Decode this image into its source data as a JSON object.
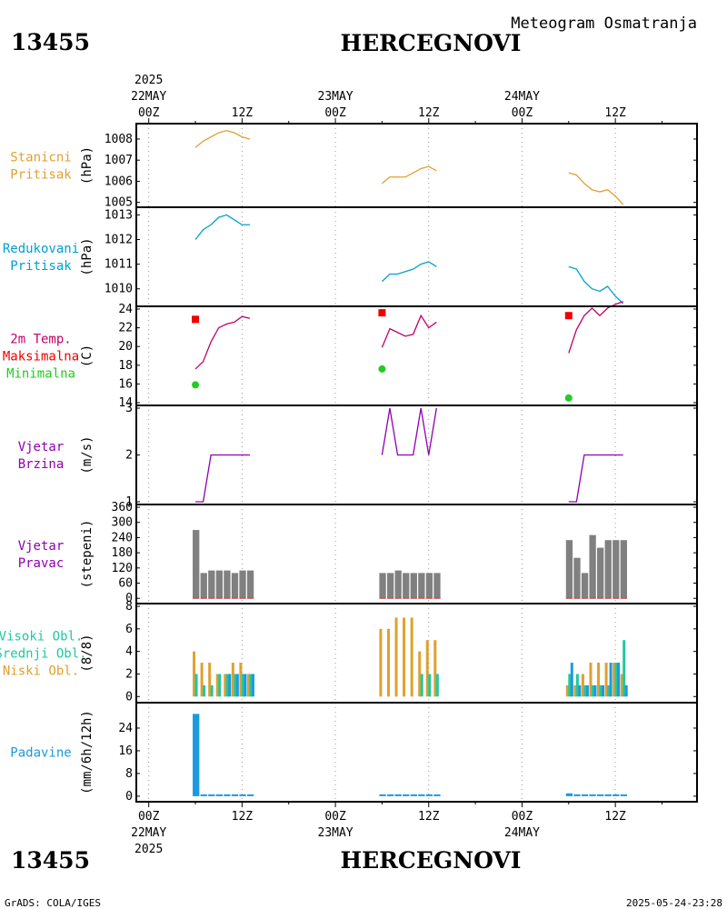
{
  "header": {
    "station_id": "13455",
    "station_name": "HERCEGNOVI",
    "subtitle": "Meteogram Osmatranja"
  },
  "footer": {
    "station_id": "13455",
    "station_name": "HERCEGNOVI",
    "credit": "GrADS: COLA/IGES",
    "timestamp": "2025-05-24-23:28"
  },
  "time_axis": {
    "year": "2025",
    "top_labels": [
      {
        "hour": 0,
        "time": "00Z",
        "date": "22MAY",
        "year": "2025"
      },
      {
        "hour": 12,
        "time": "12Z",
        "date": "",
        "year": ""
      },
      {
        "hour": 24,
        "time": "00Z",
        "date": "23MAY",
        "year": ""
      },
      {
        "hour": 36,
        "time": "12Z",
        "date": "",
        "year": ""
      },
      {
        "hour": 48,
        "time": "00Z",
        "date": "24MAY",
        "year": ""
      },
      {
        "hour": 60,
        "time": "12Z",
        "date": "",
        "year": ""
      }
    ],
    "bottom_labels": [
      {
        "hour": 0,
        "time": "00Z",
        "date": "22MAY",
        "year": "2025"
      },
      {
        "hour": 12,
        "time": "12Z",
        "date": "",
        "year": ""
      },
      {
        "hour": 24,
        "time": "00Z",
        "date": "23MAY",
        "year": ""
      },
      {
        "hour": 36,
        "time": "12Z",
        "date": "",
        "year": ""
      },
      {
        "hour": 48,
        "time": "00Z",
        "date": "24MAY",
        "year": ""
      },
      {
        "hour": 60,
        "time": "12Z",
        "date": "",
        "year": ""
      }
    ],
    "range_hours": [
      -1.6,
      70.5
    ]
  },
  "colors": {
    "station_pressure": "#e0a030",
    "reduced_pressure": "#00a0d0",
    "temperature": "#c0006a",
    "maximum": "#ee0000",
    "minimum": "#22cc22",
    "wind": "#9000b0",
    "direction_bar": "#808080",
    "direction_base": "#cc3333",
    "cloud_low": "#e0a030",
    "cloud_mid": "#20c8a0",
    "cloud_high": "#1a9ae0",
    "precip": "#1a9ae0"
  },
  "chart_data": [
    {
      "type": "line",
      "id": "station_pressure",
      "labels": [
        "Stanicni",
        "Pritisak"
      ],
      "ylabel": "(hPa)",
      "ylim": [
        1004.9,
        1008.6
      ],
      "yticks": [
        1005,
        1006,
        1007,
        1008
      ],
      "series": [
        {
          "name": "Stanicni Pritisak",
          "x": [
            6,
            7,
            8,
            9,
            10,
            11,
            12,
            13
          ],
          "y": [
            1007.6,
            1007.9,
            1008.1,
            1008.3,
            1008.4,
            1008.3,
            1008.1,
            1008.0
          ]
        },
        {
          "name": "Stanicni Pritisak",
          "x": [
            30,
            31,
            32,
            33,
            34,
            35,
            36,
            37
          ],
          "y": [
            1005.9,
            1006.2,
            1006.2,
            1006.2,
            1006.4,
            1006.6,
            1006.7,
            1006.5
          ]
        },
        {
          "name": "Stanicni Pritisak",
          "x": [
            54,
            55,
            56,
            57,
            58,
            59,
            60,
            61
          ],
          "y": [
            1006.4,
            1006.3,
            1005.9,
            1005.6,
            1005.5,
            1005.6,
            1005.3,
            1004.9
          ]
        }
      ]
    },
    {
      "type": "line",
      "id": "reduced_pressure",
      "labels": [
        "Redukovani",
        "Pritisak"
      ],
      "ylabel": "(hPa)",
      "ylim": [
        1009.4,
        1013.2
      ],
      "yticks": [
        1010,
        1011,
        1012,
        1013
      ],
      "series": [
        {
          "name": "Redukovani Pritisak",
          "x": [
            6,
            7,
            8,
            9,
            10,
            11,
            12,
            13
          ],
          "y": [
            1012.0,
            1012.4,
            1012.6,
            1012.9,
            1013.0,
            1012.8,
            1012.6,
            1012.6
          ]
        },
        {
          "name": "Redukovani Pritisak",
          "x": [
            30,
            31,
            32,
            33,
            34,
            35,
            36,
            37
          ],
          "y": [
            1010.3,
            1010.6,
            1010.6,
            1010.7,
            1010.8,
            1011.0,
            1011.1,
            1010.9
          ]
        },
        {
          "name": "Redukovani Pritisak",
          "x": [
            54,
            55,
            56,
            57,
            58,
            59,
            60,
            61
          ],
          "y": [
            1010.9,
            1010.8,
            1010.3,
            1010.0,
            1009.9,
            1010.1,
            1009.7,
            1009.4
          ]
        }
      ]
    },
    {
      "type": "line",
      "id": "temperature",
      "labels": [
        "2m Temp.",
        "Maksimalna",
        "Minimalna"
      ],
      "ylabel": "(C)",
      "ylim": [
        14,
        24
      ],
      "yticks": [
        14,
        16,
        18,
        20,
        22,
        24
      ],
      "series": [
        {
          "name": "2m Temp.",
          "x": [
            6,
            7,
            8,
            9,
            10,
            11,
            12,
            13
          ],
          "y": [
            17.6,
            18.4,
            20.5,
            22.0,
            22.4,
            22.6,
            23.2,
            23.0
          ]
        },
        {
          "name": "2m Temp.",
          "x": [
            30,
            31,
            32,
            33,
            34,
            35,
            36,
            37
          ],
          "y": [
            19.9,
            21.9,
            21.5,
            21.1,
            21.3,
            23.3,
            22.0,
            22.6
          ]
        },
        {
          "name": "2m Temp.",
          "x": [
            54,
            55,
            56,
            57,
            58,
            59,
            60,
            61
          ],
          "y": [
            19.3,
            21.8,
            23.3,
            24.1,
            23.3,
            24.1,
            24.5,
            24.8
          ]
        }
      ],
      "maximum": {
        "x": [
          6,
          30,
          54
        ],
        "y": [
          22.9,
          23.6,
          23.3
        ]
      },
      "minimum": {
        "x": [
          6,
          30,
          54
        ],
        "y": [
          15.9,
          17.6,
          14.5
        ]
      }
    },
    {
      "type": "line",
      "id": "wind_speed",
      "labels": [
        "Vjetar",
        "Brzina"
      ],
      "ylabel": "(m/s)",
      "ylim": [
        1,
        3
      ],
      "yticks": [
        1,
        2,
        3
      ],
      "series": [
        {
          "name": "Vjetar Brzina",
          "x": [
            6,
            7,
            8,
            9,
            10,
            11,
            12,
            13
          ],
          "y": [
            1,
            1,
            2,
            2,
            2,
            2,
            2,
            2
          ]
        },
        {
          "name": "Vjetar Brzina",
          "x": [
            30,
            31,
            32,
            33,
            34,
            35,
            36,
            37
          ],
          "y": [
            2,
            3,
            2,
            2,
            2,
            3,
            2,
            3
          ]
        },
        {
          "name": "Vjetar Brzina",
          "x": [
            54,
            55,
            56,
            57,
            58,
            59,
            60,
            61
          ],
          "y": [
            1,
            1,
            2,
            2,
            2,
            2,
            2,
            2
          ]
        }
      ]
    },
    {
      "type": "bar",
      "id": "wind_direction",
      "labels": [
        "Vjetar",
        "Pravac"
      ],
      "ylabel": "(stepeni)",
      "ylim": [
        -10,
        360
      ],
      "yticks": [
        0,
        60,
        120,
        180,
        240,
        300,
        360
      ],
      "x": [
        6,
        7,
        8,
        9,
        10,
        11,
        12,
        13,
        30,
        31,
        32,
        33,
        34,
        35,
        36,
        37,
        54,
        55,
        56,
        57,
        58,
        59,
        60,
        61
      ],
      "values": [
        270,
        100,
        110,
        110,
        110,
        100,
        110,
        110,
        100,
        100,
        110,
        100,
        100,
        100,
        100,
        100,
        230,
        160,
        100,
        250,
        200,
        230,
        230,
        230
      ]
    },
    {
      "type": "bar",
      "id": "clouds",
      "labels": [
        "Visoki Obl.",
        "Srednji Obl.",
        "Niski Obl."
      ],
      "ylabel": "(8/8)",
      "ylim": [
        -0.3,
        8
      ],
      "yticks": [
        0,
        2,
        4,
        6,
        8
      ],
      "x": [
        6,
        7,
        8,
        9,
        10,
        11,
        12,
        13,
        30,
        31,
        32,
        33,
        34,
        35,
        36,
        37,
        54,
        55,
        56,
        57,
        58,
        59,
        60,
        61
      ],
      "series": [
        {
          "name": "Niski Obl.",
          "values": [
            4,
            3,
            3,
            2,
            2,
            3,
            3,
            2,
            6,
            6,
            7,
            7,
            7,
            4,
            5,
            5,
            1,
            1,
            2,
            3,
            3,
            3,
            3,
            2
          ]
        },
        {
          "name": "Srednji Obl.",
          "values": [
            2,
            1,
            1,
            2,
            2,
            2,
            2,
            2,
            0,
            0,
            0,
            0,
            0,
            2,
            2,
            2,
            2,
            2,
            1,
            1,
            1,
            1,
            3,
            5
          ]
        },
        {
          "name": "Visoki Obl.",
          "values": [
            0,
            0,
            0,
            0,
            2,
            2,
            2,
            2,
            0,
            0,
            0,
            0,
            0,
            0,
            0,
            0,
            3,
            1,
            1,
            1,
            1,
            3,
            3,
            1
          ]
        }
      ]
    },
    {
      "type": "bar",
      "id": "precipitation",
      "labels": [
        "Padavine"
      ],
      "ylabel": "(mm/6h/12h)",
      "ylim": [
        -1,
        32
      ],
      "yticks": [
        0,
        8,
        16,
        24
      ],
      "x": [
        6,
        7,
        8,
        9,
        10,
        11,
        12,
        13,
        30,
        31,
        32,
        33,
        34,
        35,
        36,
        37,
        54,
        55,
        56,
        57,
        58,
        59,
        60,
        61
      ],
      "values": [
        29,
        0.2,
        0.2,
        0.2,
        0.2,
        0.2,
        0.2,
        0.2,
        0.2,
        0.2,
        0.2,
        0.2,
        0.2,
        0.2,
        0.2,
        0.2,
        1,
        0.2,
        0.2,
        0.2,
        0.2,
        0.2,
        0.2,
        0.2
      ]
    }
  ]
}
